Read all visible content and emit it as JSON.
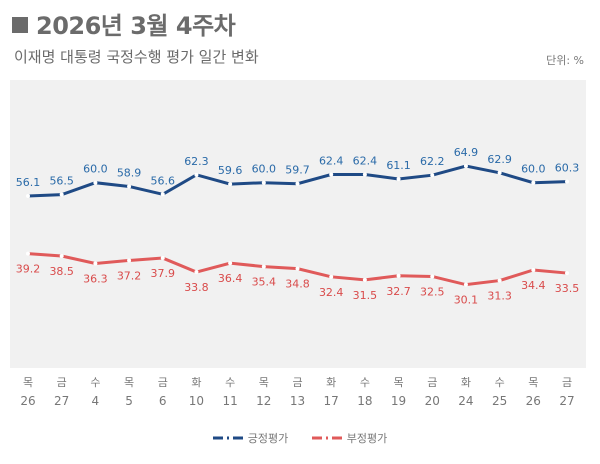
{
  "header": {
    "title": "2026년 3월 4주차",
    "subtitle": "이재명 대통령 국정수행 평가 일간 변화",
    "unit": "단위: %"
  },
  "chart_data": {
    "type": "line",
    "title": "2026년 3월 4주차",
    "subtitle": "이재명 대통령 국정수행 평가 일간 변화",
    "unit": "%",
    "categories": [
      {
        "day": "목",
        "date": "26"
      },
      {
        "day": "금",
        "date": "27"
      },
      {
        "day": "수",
        "date": "4"
      },
      {
        "day": "목",
        "date": "5"
      },
      {
        "day": "금",
        "date": "6"
      },
      {
        "day": "화",
        "date": "10"
      },
      {
        "day": "수",
        "date": "11"
      },
      {
        "day": "목",
        "date": "12"
      },
      {
        "day": "금",
        "date": "13"
      },
      {
        "day": "화",
        "date": "17"
      },
      {
        "day": "수",
        "date": "18"
      },
      {
        "day": "목",
        "date": "19"
      },
      {
        "day": "금",
        "date": "20"
      },
      {
        "day": "화",
        "date": "24"
      },
      {
        "day": "수",
        "date": "25"
      },
      {
        "day": "목",
        "date": "26"
      },
      {
        "day": "금",
        "date": "27"
      }
    ],
    "series": [
      {
        "name": "긍정평가",
        "color": "#1f4a85",
        "label_color": "#2a6aa8",
        "label_pos": "above",
        "values": [
          56.1,
          56.5,
          60.0,
          58.9,
          56.6,
          62.3,
          59.6,
          60.0,
          59.7,
          62.4,
          62.4,
          61.1,
          62.2,
          64.9,
          62.9,
          60.0,
          60.3
        ]
      },
      {
        "name": "부정평가",
        "color": "#e05a5a",
        "label_color": "#d94b4b",
        "label_pos": "below",
        "values": [
          39.2,
          38.5,
          36.3,
          37.2,
          37.9,
          33.8,
          36.4,
          35.4,
          34.8,
          32.4,
          31.5,
          32.7,
          32.5,
          30.1,
          31.3,
          34.4,
          33.5
        ]
      }
    ],
    "legend": "bottom-center",
    "grid": false
  }
}
